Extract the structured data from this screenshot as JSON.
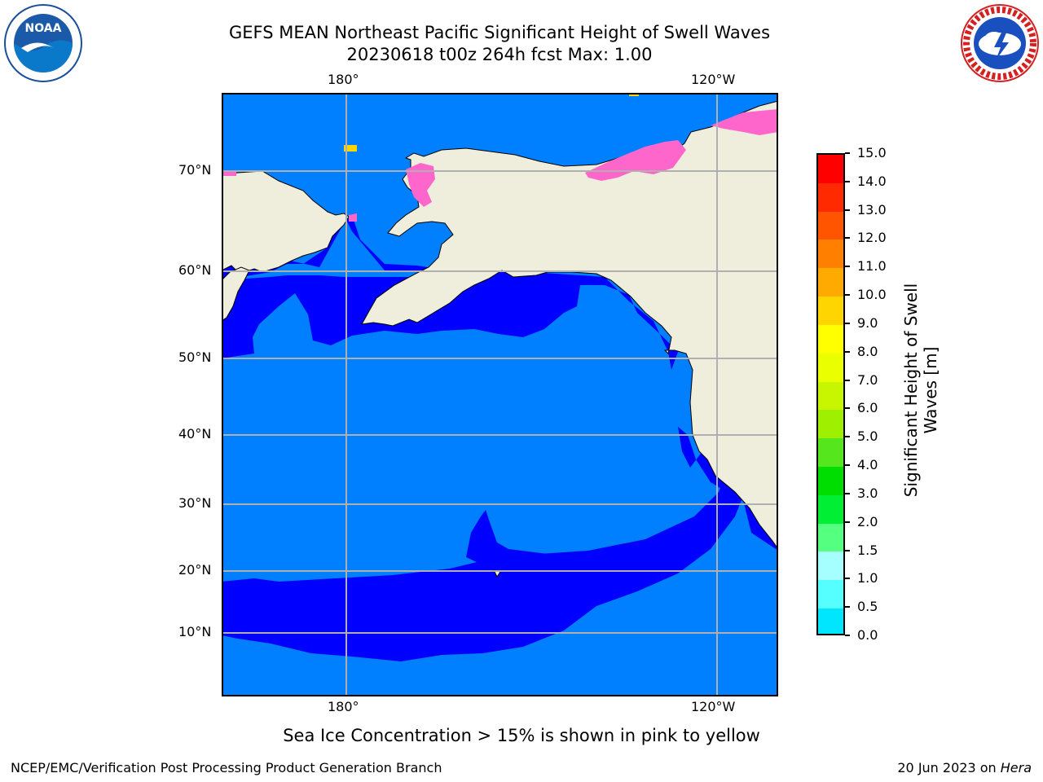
{
  "header": {
    "title_line1": "GEFS MEAN Northeast Pacific Significant Height of Swell Waves",
    "title_line2": "20230618 t00z 264h fcst   Max: 1.00"
  },
  "logos": {
    "noaa_text": "NOAA",
    "nws_text": "NATIONAL WEATHER SERVICE"
  },
  "map": {
    "lon_labels_top": [
      "180°",
      "120°W"
    ],
    "lon_labels_bottom": [
      "180°",
      "120°W"
    ],
    "lat_labels": [
      "70°N",
      "60°N",
      "50°N",
      "40°N",
      "30°N",
      "20°N",
      "10°N"
    ],
    "colors": {
      "land": "#efeddc",
      "ocean_low": "#0000ff",
      "ocean_mid": "#0080ff",
      "ice": "#ff66cc",
      "grid": "#b0b0b0"
    }
  },
  "colorbar": {
    "label": "Significant Height of Swell Waves [m]",
    "label_line1": "Significant Height of Swell",
    "label_line2": "Waves [m]",
    "ticks": [
      "15.0",
      "14.0",
      "13.0",
      "12.0",
      "11.0",
      "10.0",
      "9.0",
      "8.0",
      "7.0",
      "6.0",
      "5.0",
      "4.0",
      "3.0",
      "2.0",
      "1.5",
      "1.0",
      "0.5",
      "0.0"
    ],
    "colors": [
      "#ff0000",
      "#ff2a00",
      "#ff5500",
      "#ff8000",
      "#ffaa00",
      "#ffd500",
      "#ffff00",
      "#eaff00",
      "#c8f500",
      "#9ff000",
      "#55e61e",
      "#00dd00",
      "#00ee33",
      "#55ff80",
      "#a6ffff",
      "#55ffff",
      "#00e6ff",
      "#0080ff",
      "#0000ff"
    ]
  },
  "note": "Sea Ice Concentration > 15% is shown in pink to yellow",
  "footer": {
    "left": "NCEP/EMC/Verification Post Processing Product Generation Branch",
    "right_prefix": "20 Jun 2023 on ",
    "right_host": "Hera"
  }
}
